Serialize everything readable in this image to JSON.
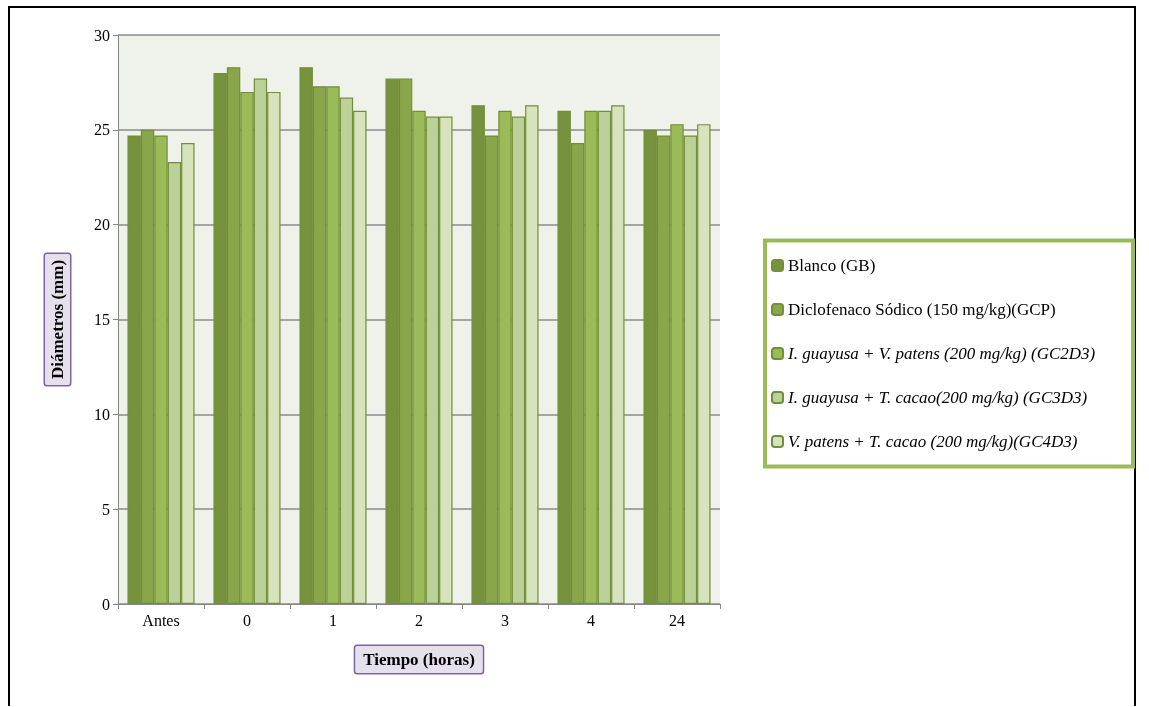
{
  "chart_data": {
    "type": "bar",
    "xlabel": "Tiempo (horas)",
    "ylabel": "Diámetros (mm)",
    "categories": [
      "Antes",
      "0",
      "1",
      "2",
      "3",
      "4",
      "24"
    ],
    "series": [
      {
        "name": "Blanco (GB)",
        "color": "#76923c",
        "values": [
          24.7,
          28,
          28.3,
          27.7,
          26.3,
          26,
          25
        ]
      },
      {
        "name": "Diclofenaco Sódico (150 mg/kg)(GCP)",
        "color": "#8aa64a",
        "values": [
          25,
          28.3,
          27.3,
          27.7,
          24.7,
          24.3,
          24.7
        ]
      },
      {
        "name": "I. guayusa + V. patens (200 mg/kg) (GC2D3)",
        "color": "#9bbb59",
        "values": [
          24.7,
          27,
          27.3,
          26,
          26,
          26,
          25.3
        ]
      },
      {
        "name": "I. guayusa + T. cacao(200 mg/kg) (GC3D3)",
        "color": "#bcd09a",
        "values": [
          23.3,
          27.7,
          26.7,
          25.7,
          25.7,
          26,
          24.7
        ]
      },
      {
        "name": "V. patens + T. cacao (200 mg/kg)(GC4D3)",
        "color": "#d6e3bc",
        "values": [
          24.3,
          27,
          26,
          25.7,
          26.3,
          26.3,
          25.3
        ]
      }
    ],
    "ylim": [
      0,
      30
    ],
    "yticks": [
      0,
      5,
      10,
      15,
      20,
      25,
      30
    ],
    "grid": "y",
    "legend": "right"
  }
}
